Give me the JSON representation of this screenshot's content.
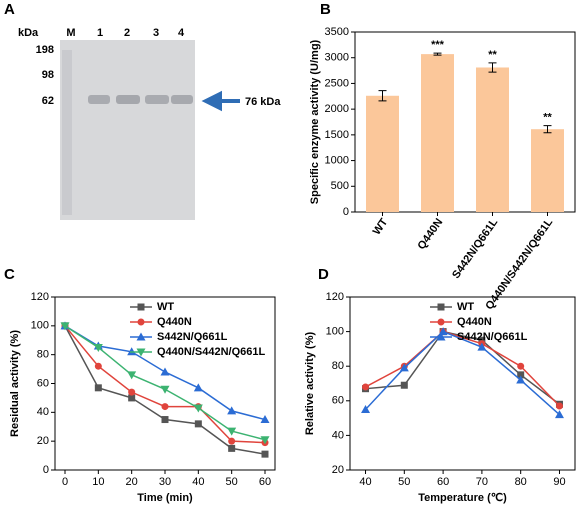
{
  "gel": {
    "panel": "A",
    "unit": "kDa",
    "lanes": [
      "M",
      "1",
      "2",
      "3",
      "4"
    ],
    "markers": [
      "198",
      "98",
      "62"
    ],
    "arrow_label": "76 kDa"
  },
  "chart_data": [
    {
      "type": "bar",
      "panel": "B",
      "ylabel": "Specific enzyme activity (U/mg)",
      "categories": [
        "WT",
        "Q440N",
        "S442N/Q661L",
        "Q440N/S442N/Q661L"
      ],
      "values": [
        2260,
        3070,
        2810,
        1610
      ],
      "errors": [
        100,
        20,
        90,
        70
      ],
      "annotations": [
        null,
        "***",
        "**",
        "**"
      ],
      "color": "#fbc79a",
      "ylim": [
        0,
        3500
      ],
      "yticks": [
        0,
        500,
        1000,
        1500,
        2000,
        2500,
        3000,
        3500
      ]
    },
    {
      "type": "line",
      "panel": "C",
      "xlabel": "Time (min)",
      "ylabel": "Residual activity (%)",
      "x": [
        0,
        10,
        20,
        30,
        40,
        50,
        60
      ],
      "legend": "upper right",
      "series": [
        {
          "name": "WT",
          "color": "#555555",
          "marker": "square",
          "values": [
            100,
            57,
            50,
            35,
            32,
            15,
            11
          ]
        },
        {
          "name": "Q440N",
          "color": "#e0443c",
          "marker": "circle",
          "values": [
            100,
            72,
            54,
            44,
            44,
            20,
            19
          ]
        },
        {
          "name": "S442N/Q661L",
          "color": "#2b6cd4",
          "marker": "triangle",
          "values": [
            100,
            86,
            82,
            68,
            57,
            41,
            35
          ]
        },
        {
          "name": "Q440N/S442N/Q661L",
          "color": "#3cb371",
          "marker": "triangle-down",
          "values": [
            100,
            85,
            66,
            56,
            43,
            27,
            21
          ]
        }
      ],
      "xlim": [
        -3,
        63
      ],
      "xticks": [
        0,
        10,
        20,
        30,
        40,
        50,
        60
      ],
      "ylim": [
        0,
        120
      ],
      "yticks": [
        0,
        20,
        40,
        60,
        80,
        100,
        120
      ]
    },
    {
      "type": "line",
      "panel": "D",
      "xlabel": "Temperature (℃)",
      "ylabel": "Relative activity (%)",
      "x": [
        40,
        50,
        60,
        70,
        80,
        90
      ],
      "legend": "upper right",
      "series": [
        {
          "name": "WT",
          "color": "#555555",
          "marker": "square",
          "values": [
            67,
            69,
            100,
            95,
            75,
            58
          ]
        },
        {
          "name": "Q440N",
          "color": "#e0443c",
          "marker": "circle",
          "values": [
            68,
            80,
            100,
            93,
            80,
            57
          ]
        },
        {
          "name": "S442N/Q661L",
          "color": "#2b6cd4",
          "marker": "triangle",
          "values": [
            55,
            79,
            100,
            91,
            72,
            52
          ]
        }
      ],
      "xlim": [
        36,
        94
      ],
      "xticks": [
        40,
        50,
        60,
        70,
        80,
        90
      ],
      "ylim": [
        20,
        120
      ],
      "yticks": [
        20,
        40,
        60,
        80,
        100,
        120
      ]
    }
  ]
}
